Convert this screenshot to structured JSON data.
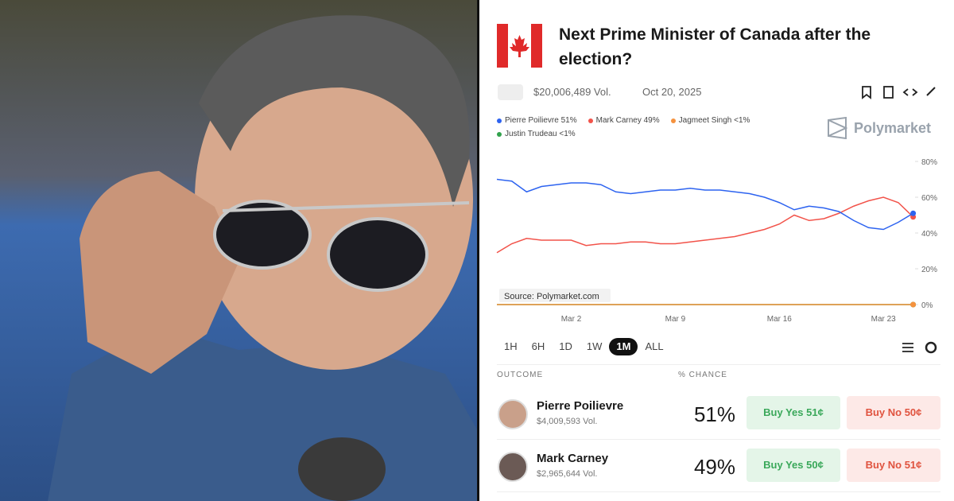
{
  "header": {
    "title": "Next Prime Minister of Canada after the election?",
    "volume": "$20,006,489 Vol.",
    "date": "Oct 20, 2025",
    "brand": "Polymarket"
  },
  "chart_data": {
    "type": "line",
    "x": [
      null,
      null,
      null,
      null,
      null,
      "Mar 2",
      null,
      null,
      null,
      null,
      null,
      null,
      "Mar 9",
      null,
      null,
      null,
      null,
      null,
      null,
      "Mar 16",
      null,
      null,
      null,
      null,
      null,
      null,
      "Mar 23",
      null,
      null
    ],
    "series": [
      {
        "name": "Pierre Poilievre 51%",
        "color": "#2d63f0",
        "values": [
          70,
          69,
          63,
          66,
          67,
          68,
          68,
          67,
          63,
          62,
          63,
          64,
          64,
          65,
          64,
          64,
          63,
          62,
          60,
          57,
          53,
          55,
          54,
          52,
          47,
          43,
          42,
          46,
          51
        ]
      },
      {
        "name": "Mark Carney 49%",
        "color": "#f2534a",
        "values": [
          29,
          34,
          37,
          36,
          36,
          36,
          33,
          34,
          34,
          35,
          35,
          34,
          34,
          35,
          36,
          37,
          38,
          40,
          42,
          45,
          50,
          47,
          48,
          51,
          55,
          58,
          60,
          57,
          49
        ]
      },
      {
        "name": "Jagmeet Singh <1%",
        "color": "#f5923e",
        "values": [
          0,
          0,
          0,
          0,
          0,
          0,
          0,
          0,
          0,
          0,
          0,
          0,
          0,
          0,
          0,
          0,
          0,
          0,
          0,
          0,
          0,
          0,
          0,
          0,
          0,
          0,
          0,
          0,
          0
        ]
      },
      {
        "name": "Justin Trudeau <1%",
        "color": "#31a24c",
        "values": [
          0,
          0,
          0,
          0,
          0,
          0,
          0,
          0,
          0,
          0,
          0,
          0,
          0,
          0,
          0,
          0,
          0,
          0,
          0,
          0,
          0,
          0,
          0,
          0,
          0,
          0,
          0,
          0,
          0
        ]
      }
    ],
    "ylim": [
      0,
      80
    ],
    "yticks": [
      {
        "value": 80,
        "label": "80%"
      },
      {
        "value": 60,
        "label": "60%"
      },
      {
        "value": 40,
        "label": "40%"
      },
      {
        "value": 20,
        "label": "20%"
      },
      {
        "value": 0,
        "label": "0%"
      }
    ],
    "source": "Source: Polymarket.com"
  },
  "timeframes": {
    "options": [
      "1H",
      "6H",
      "1D",
      "1W",
      "1M",
      "ALL"
    ],
    "active": "1M"
  },
  "table": {
    "headers": [
      "OUTCOME",
      "% CHANCE"
    ],
    "rows": [
      {
        "name": "Pierre Poilievre",
        "volume": "$4,009,593 Vol.",
        "chance": "51%",
        "buy_yes": "Buy Yes 51¢",
        "buy_no": "Buy No 50¢"
      },
      {
        "name": "Mark Carney",
        "volume": "$2,965,644 Vol.",
        "chance": "49%",
        "buy_yes": "Buy Yes 50¢",
        "buy_no": "Buy No 51¢"
      }
    ]
  }
}
